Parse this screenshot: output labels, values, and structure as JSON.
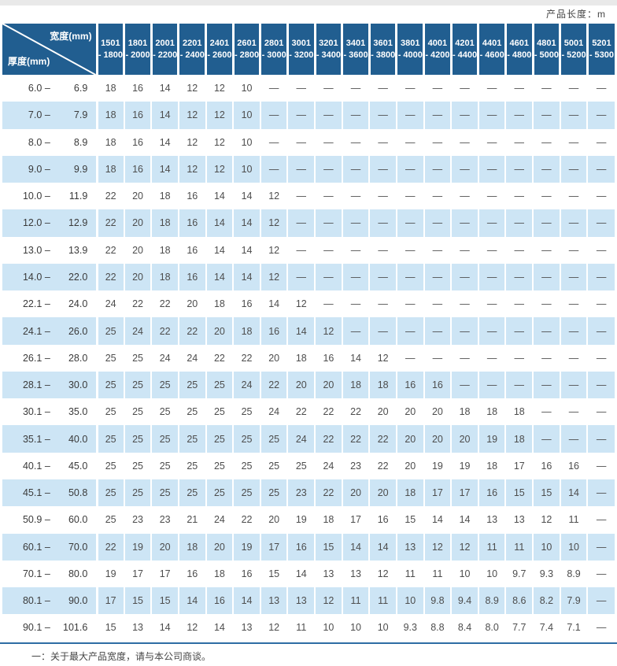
{
  "colors": {
    "header_blue": "#215e90",
    "row_alt": "#cde5f5",
    "line_blue": "#2e6da4",
    "strip_gray": "#e9e9e9"
  },
  "header_note": "产品长度：m",
  "table": {
    "corner": {
      "width_label": "宽度(mm)",
      "thickness_label": "厚度(mm)"
    },
    "label_separator": "–",
    "width_columns": [
      {
        "l1": "1501",
        "l2": "- 1800"
      },
      {
        "l1": "1801",
        "l2": "- 2000"
      },
      {
        "l1": "2001",
        "l2": "- 2200"
      },
      {
        "l1": "2201",
        "l2": "- 2400"
      },
      {
        "l1": "2401",
        "l2": "- 2600"
      },
      {
        "l1": "2601",
        "l2": "- 2800"
      },
      {
        "l1": "2801",
        "l2": "- 3000"
      },
      {
        "l1": "3001",
        "l2": "- 3200"
      },
      {
        "l1": "3201",
        "l2": "- 3400"
      },
      {
        "l1": "3401",
        "l2": "- 3600"
      },
      {
        "l1": "3601",
        "l2": "- 3800"
      },
      {
        "l1": "3801",
        "l2": "- 4000"
      },
      {
        "l1": "4001",
        "l2": "- 4200"
      },
      {
        "l1": "4201",
        "l2": "- 4400"
      },
      {
        "l1": "4401",
        "l2": "- 4600"
      },
      {
        "l1": "4601",
        "l2": "- 4800"
      },
      {
        "l1": "4801",
        "l2": "- 5000"
      },
      {
        "l1": "5001",
        "l2": "- 5200"
      },
      {
        "l1": "5201",
        "l2": "- 5300"
      }
    ],
    "rows": [
      {
        "min": "6.0",
        "max": "6.9",
        "values": [
          "18",
          "16",
          "14",
          "12",
          "12",
          "10",
          "—",
          "—",
          "—",
          "—",
          "—",
          "—",
          "—",
          "—",
          "—",
          "—",
          "—",
          "—",
          "—"
        ]
      },
      {
        "min": "7.0",
        "max": "7.9",
        "values": [
          "18",
          "16",
          "14",
          "12",
          "12",
          "10",
          "—",
          "—",
          "—",
          "—",
          "—",
          "—",
          "—",
          "—",
          "—",
          "—",
          "—",
          "—",
          "—"
        ]
      },
      {
        "min": "8.0",
        "max": "8.9",
        "values": [
          "18",
          "16",
          "14",
          "12",
          "12",
          "10",
          "—",
          "—",
          "—",
          "—",
          "—",
          "—",
          "—",
          "—",
          "—",
          "—",
          "—",
          "—",
          "—"
        ]
      },
      {
        "min": "9.0",
        "max": "9.9",
        "values": [
          "18",
          "16",
          "14",
          "12",
          "12",
          "10",
          "—",
          "—",
          "—",
          "—",
          "—",
          "—",
          "—",
          "—",
          "—",
          "—",
          "—",
          "—",
          "—"
        ]
      },
      {
        "min": "10.0",
        "max": "11.9",
        "values": [
          "22",
          "20",
          "18",
          "16",
          "14",
          "14",
          "12",
          "—",
          "—",
          "—",
          "—",
          "—",
          "—",
          "—",
          "—",
          "—",
          "—",
          "—",
          "—"
        ]
      },
      {
        "min": "12.0",
        "max": "12.9",
        "values": [
          "22",
          "20",
          "18",
          "16",
          "14",
          "14",
          "12",
          "—",
          "—",
          "—",
          "—",
          "—",
          "—",
          "—",
          "—",
          "—",
          "—",
          "—",
          "—"
        ]
      },
      {
        "min": "13.0",
        "max": "13.9",
        "values": [
          "22",
          "20",
          "18",
          "16",
          "14",
          "14",
          "12",
          "—",
          "—",
          "—",
          "—",
          "—",
          "—",
          "—",
          "—",
          "—",
          "—",
          "—",
          "—"
        ]
      },
      {
        "min": "14.0",
        "max": "22.0",
        "values": [
          "22",
          "20",
          "18",
          "16",
          "14",
          "14",
          "12",
          "—",
          "—",
          "—",
          "—",
          "—",
          "—",
          "—",
          "—",
          "—",
          "—",
          "—",
          "—"
        ]
      },
      {
        "min": "22.1",
        "max": "24.0",
        "values": [
          "24",
          "22",
          "22",
          "20",
          "18",
          "16",
          "14",
          "12",
          "—",
          "—",
          "—",
          "—",
          "—",
          "—",
          "—",
          "—",
          "—",
          "—",
          "—"
        ]
      },
      {
        "min": "24.1",
        "max": "26.0",
        "values": [
          "25",
          "24",
          "22",
          "22",
          "20",
          "18",
          "16",
          "14",
          "12",
          "—",
          "—",
          "—",
          "—",
          "—",
          "—",
          "—",
          "—",
          "—",
          "—"
        ]
      },
      {
        "min": "26.1",
        "max": "28.0",
        "values": [
          "25",
          "25",
          "24",
          "24",
          "22",
          "22",
          "20",
          "18",
          "16",
          "14",
          "12",
          "—",
          "—",
          "—",
          "—",
          "—",
          "—",
          "—",
          "—"
        ]
      },
      {
        "min": "28.1",
        "max": "30.0",
        "values": [
          "25",
          "25",
          "25",
          "25",
          "25",
          "24",
          "22",
          "20",
          "20",
          "18",
          "18",
          "16",
          "16",
          "—",
          "—",
          "—",
          "—",
          "—",
          "—"
        ]
      },
      {
        "min": "30.1",
        "max": "35.0",
        "values": [
          "25",
          "25",
          "25",
          "25",
          "25",
          "25",
          "24",
          "22",
          "22",
          "22",
          "20",
          "20",
          "20",
          "18",
          "18",
          "18",
          "—",
          "—",
          "—"
        ]
      },
      {
        "min": "35.1",
        "max": "40.0",
        "values": [
          "25",
          "25",
          "25",
          "25",
          "25",
          "25",
          "25",
          "24",
          "22",
          "22",
          "22",
          "20",
          "20",
          "20",
          "19",
          "18",
          "—",
          "—",
          "—"
        ]
      },
      {
        "min": "40.1",
        "max": "45.0",
        "values": [
          "25",
          "25",
          "25",
          "25",
          "25",
          "25",
          "25",
          "25",
          "24",
          "23",
          "22",
          "20",
          "19",
          "19",
          "18",
          "17",
          "16",
          "16",
          "—"
        ]
      },
      {
        "min": "45.1",
        "max": "50.8",
        "values": [
          "25",
          "25",
          "25",
          "25",
          "25",
          "25",
          "25",
          "23",
          "22",
          "20",
          "20",
          "18",
          "17",
          "17",
          "16",
          "15",
          "15",
          "14",
          "—"
        ]
      },
      {
        "min": "50.9",
        "max": "60.0",
        "values": [
          "25",
          "23",
          "23",
          "21",
          "24",
          "22",
          "20",
          "19",
          "18",
          "17",
          "16",
          "15",
          "14",
          "14",
          "13",
          "13",
          "12",
          "11",
          "—"
        ]
      },
      {
        "min": "60.1",
        "max": "70.0",
        "values": [
          "22",
          "19",
          "20",
          "18",
          "20",
          "19",
          "17",
          "16",
          "15",
          "14",
          "14",
          "13",
          "12",
          "12",
          "11",
          "11",
          "10",
          "10",
          "—"
        ]
      },
      {
        "min": "70.1",
        "max": "80.0",
        "values": [
          "19",
          "17",
          "17",
          "16",
          "18",
          "16",
          "15",
          "14",
          "13",
          "13",
          "12",
          "11",
          "11",
          "10",
          "10",
          "9.7",
          "9.3",
          "8.9",
          "—"
        ]
      },
      {
        "min": "80.1",
        "max": "90.0",
        "values": [
          "17",
          "15",
          "15",
          "14",
          "16",
          "14",
          "13",
          "13",
          "12",
          "11",
          "11",
          "10",
          "9.8",
          "9.4",
          "8.9",
          "8.6",
          "8.2",
          "7.9",
          "—"
        ]
      },
      {
        "min": "90.1",
        "max": "101.6",
        "values": [
          "15",
          "13",
          "14",
          "12",
          "14",
          "13",
          "12",
          "11",
          "10",
          "10",
          "10",
          "9.3",
          "8.8",
          "8.4",
          "8.0",
          "7.7",
          "7.4",
          "7.1",
          "—"
        ]
      }
    ]
  },
  "footer_note": "一：关于最大产品宽度，请与本公司商谈。"
}
